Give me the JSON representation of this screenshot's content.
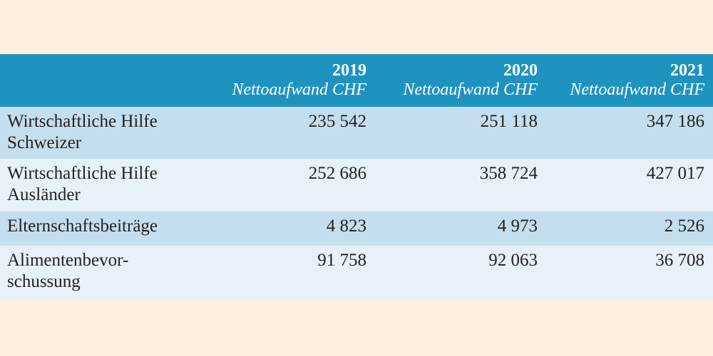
{
  "colors": {
    "background": "#fdeee2",
    "header": "#1f93c0",
    "row_dark": "#c4deed",
    "row_light": "#e6f1f8"
  },
  "table": {
    "columns": [
      {
        "year": "2019",
        "unit": "Nettoaufwand CHF"
      },
      {
        "year": "2020",
        "unit": "Nettoaufwand CHF"
      },
      {
        "year": "2021",
        "unit": "Nettoaufwand CHF"
      }
    ],
    "rows": [
      {
        "label": "Wirtschaftliche Hilfe\nSchweizer",
        "values": [
          "235 542",
          "251 118",
          "347 186"
        ]
      },
      {
        "label": "Wirtschaftliche Hilfe\nAusländer",
        "values": [
          "252 686",
          "358 724",
          "427 017"
        ]
      },
      {
        "label": "Elternschaftsbeiträge",
        "values": [
          "4 823",
          "4 973",
          "2 526"
        ]
      },
      {
        "label": "Alimentenbevor-\nschussung",
        "values": [
          "91 758",
          "92 063",
          "36 708"
        ]
      }
    ]
  }
}
